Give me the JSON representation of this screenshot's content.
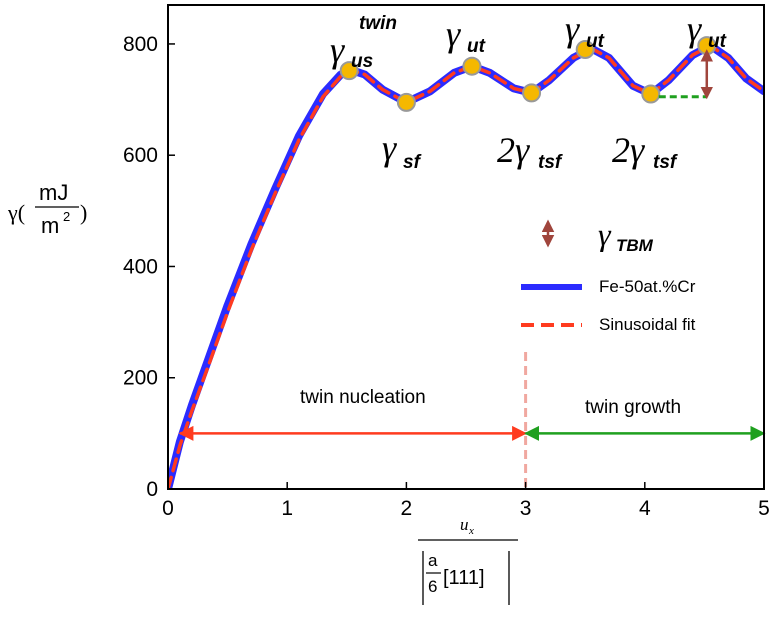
{
  "chart_data": {
    "type": "line",
    "x_range": [
      0,
      5
    ],
    "y_range": [
      0,
      870
    ],
    "x_ticks": [
      "0",
      "1",
      "2",
      "3",
      "4",
      "5"
    ],
    "y_ticks": [
      "0",
      "200",
      "400",
      "600",
      "800"
    ],
    "series": [
      {
        "name": "Fe-50at.%Cr",
        "color": "#2b2bff",
        "style": "solid",
        "x": [
          0,
          0.1,
          0.2,
          0.35,
          0.5,
          0.7,
          0.9,
          1.1,
          1.3,
          1.45,
          1.55,
          1.65,
          1.8,
          2.0,
          2.2,
          2.4,
          2.55,
          2.7,
          2.9,
          3.05,
          3.2,
          3.4,
          3.55,
          3.7,
          3.9,
          4.05,
          4.2,
          4.4,
          4.55,
          4.7,
          4.85,
          5.0
        ],
        "y": [
          0,
          85,
          150,
          240,
          330,
          440,
          540,
          635,
          710,
          745,
          752,
          745,
          718,
          695,
          715,
          748,
          760,
          748,
          720,
          712,
          735,
          775,
          792,
          775,
          725,
          710,
          735,
          780,
          797,
          775,
          738,
          715
        ]
      },
      {
        "name": "Sinusoidal fit",
        "color": "#ff3b1f",
        "style": "dashed",
        "x": [
          0,
          0.1,
          0.2,
          0.35,
          0.5,
          0.7,
          0.9,
          1.1,
          1.3,
          1.45,
          1.55,
          1.65,
          1.8,
          2.0,
          2.2,
          2.4,
          2.55,
          2.7,
          2.9,
          3.05,
          3.2,
          3.4,
          3.55,
          3.7,
          3.9,
          4.05,
          4.2,
          4.4,
          4.55,
          4.7,
          4.85,
          5.0
        ],
        "y": [
          0,
          78,
          140,
          228,
          318,
          430,
          532,
          628,
          705,
          742,
          752,
          745,
          718,
          695,
          715,
          748,
          760,
          748,
          720,
          712,
          735,
          775,
          792,
          775,
          725,
          710,
          735,
          780,
          797,
          775,
          738,
          715
        ]
      }
    ],
    "markers": [
      {
        "x": 1.52,
        "y": 752
      },
      {
        "x": 2.0,
        "y": 695
      },
      {
        "x": 2.55,
        "y": 760
      },
      {
        "x": 3.05,
        "y": 712
      },
      {
        "x": 3.5,
        "y": 790
      },
      {
        "x": 4.05,
        "y": 710
      },
      {
        "x": 4.52,
        "y": 797
      }
    ],
    "marker_color": "#f5b800",
    "marker_edge": "#999999",
    "annotations": {
      "us_twin": {
        "base": "γ",
        "sub": "us",
        "sup": "twin"
      },
      "sf": {
        "base": "γ",
        "sub": "sf"
      },
      "ut1": {
        "base": "γ",
        "sub": "ut"
      },
      "tsf1": {
        "base": "2γ",
        "sub": "tsf"
      },
      "ut2": {
        "base": "γ",
        "sub": "ut"
      },
      "tsf2": {
        "base": "2γ",
        "sub": "tsf"
      },
      "ut3": {
        "base": "γ",
        "sub": "ut"
      }
    },
    "legend": {
      "tbm": {
        "base": "γ",
        "sub": "TBM"
      },
      "series1": "Fe-50at.%Cr",
      "series2": "Sinusoidal fit"
    },
    "tbm_arrow": {
      "x": 4.52,
      "y_from": 705,
      "y_to": 797,
      "color": "#a0453c"
    },
    "tbm_dash": {
      "x_from": 4.05,
      "x_to": 4.52,
      "y": 705,
      "color": "#1fa01f"
    },
    "region_divider": {
      "x": 3.0
    },
    "regions": [
      {
        "label": "twin nucleation",
        "x_from": 0.1,
        "x_to": 3.0,
        "color": "#ff3b1f"
      },
      {
        "label": "twin growth",
        "x_from": 3.0,
        "x_to": 5.0,
        "color": "#1fa01f"
      }
    ],
    "ylabel": {
      "main": "γ(",
      "num": "mJ",
      "den": "m",
      "den_sup": "2",
      "close": ")"
    },
    "xlabel": {
      "num": "u",
      "num_sub": "x",
      "frac_num": "a",
      "frac_den": "6",
      "vector": "[111]"
    }
  }
}
